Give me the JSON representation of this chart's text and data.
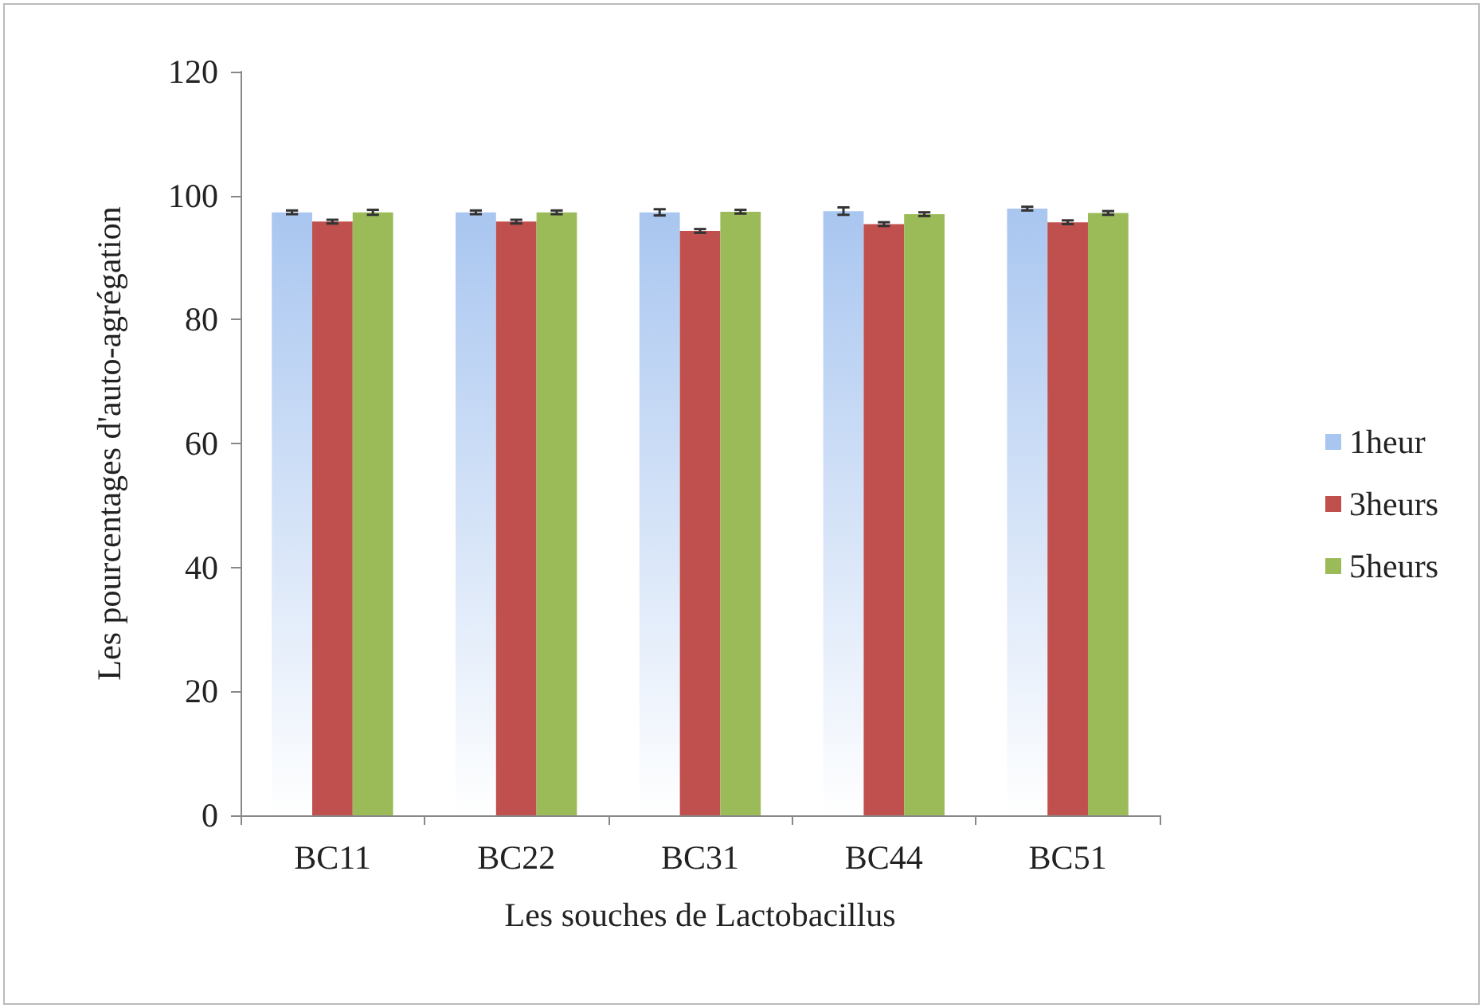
{
  "chart_data": {
    "type": "bar",
    "xlabel": "Les souches de Lactobacillus",
    "ylabel": "Les pourcentages d'auto-agrégation",
    "categories": [
      "BC11",
      "BC22",
      "BC31",
      "BC44",
      "BC51"
    ],
    "series": [
      {
        "name": "1heur",
        "color": "#a9c6f0",
        "values": [
          97.3,
          97.3,
          97.3,
          97.5,
          97.9
        ],
        "errors": [
          0.3,
          0.3,
          0.5,
          0.6,
          0.3
        ]
      },
      {
        "name": "3heurs",
        "color": "#c0504d",
        "values": [
          95.8,
          95.8,
          94.3,
          95.4,
          95.7
        ],
        "errors": [
          0.3,
          0.3,
          0.3,
          0.3,
          0.3
        ]
      },
      {
        "name": "5heurs",
        "color": "#9bbb59",
        "values": [
          97.3,
          97.3,
          97.4,
          97.0,
          97.2
        ],
        "errors": [
          0.4,
          0.3,
          0.3,
          0.3,
          0.3
        ]
      }
    ],
    "ylim": [
      0,
      120
    ],
    "yticks": [
      0,
      20,
      40,
      60,
      80,
      100,
      120
    ],
    "grid": false,
    "legend": "right"
  }
}
